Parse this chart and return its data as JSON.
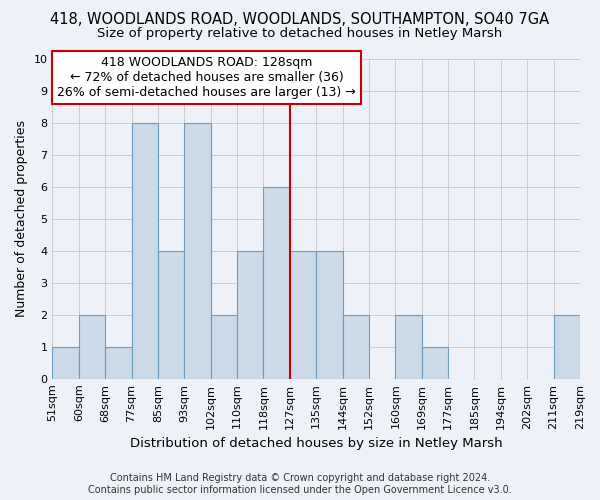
{
  "title": "418, WOODLANDS ROAD, WOODLANDS, SOUTHAMPTON, SO40 7GA",
  "subtitle": "Size of property relative to detached houses in Netley Marsh",
  "xlabel": "Distribution of detached houses by size in Netley Marsh",
  "ylabel": "Number of detached properties",
  "bins": [
    "51sqm",
    "60sqm",
    "68sqm",
    "77sqm",
    "85sqm",
    "93sqm",
    "102sqm",
    "110sqm",
    "118sqm",
    "127sqm",
    "135sqm",
    "144sqm",
    "152sqm",
    "160sqm",
    "169sqm",
    "177sqm",
    "185sqm",
    "194sqm",
    "202sqm",
    "211sqm",
    "219sqm"
  ],
  "counts": [
    1,
    2,
    1,
    8,
    4,
    8,
    2,
    4,
    6,
    4,
    4,
    2,
    0,
    2,
    1,
    0,
    0,
    0,
    0,
    2
  ],
  "bar_color": "#ccd9e8",
  "bar_edge_color": "#6a9fc0",
  "reference_line_x": 9,
  "reference_line_color": "#cc0000",
  "annotation_text": "418 WOODLANDS ROAD: 128sqm\n← 72% of detached houses are smaller (36)\n26% of semi-detached houses are larger (13) →",
  "annotation_box_edge": "#cc0000",
  "ylim": [
    0,
    10
  ],
  "yticks": [
    0,
    1,
    2,
    3,
    4,
    5,
    6,
    7,
    8,
    9,
    10
  ],
  "bg_color": "#eef2f8",
  "grid_color": "#cccccc",
  "footer_line1": "Contains HM Land Registry data © Crown copyright and database right 2024.",
  "footer_line2": "Contains public sector information licensed under the Open Government Licence v3.0.",
  "title_fontsize": 10.5,
  "subtitle_fontsize": 9.5,
  "xlabel_fontsize": 9.5,
  "ylabel_fontsize": 9,
  "tick_fontsize": 8,
  "annotation_fontsize": 9,
  "footer_fontsize": 7
}
